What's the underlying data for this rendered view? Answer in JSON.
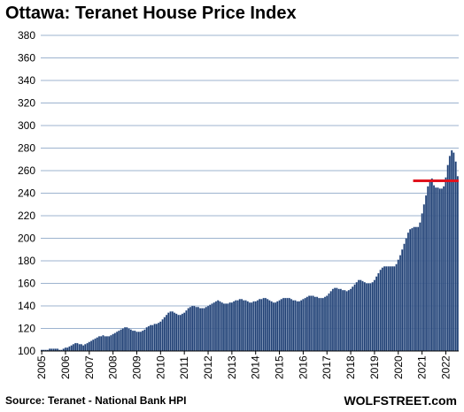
{
  "title": "Ottawa: Teranet House Price Index",
  "source": "Source: Teranet - National Bank HPI",
  "brand": "WOLFSTREET.com",
  "colors": {
    "bar_fill": "#1f3f73",
    "bar_stroke": "#8fa6c8",
    "grid": "#9db3cf",
    "reference_line": "#e0131d",
    "axis": "#000000"
  },
  "chart_data": {
    "type": "bar",
    "title": "Ottawa: Teranet House Price Index",
    "xlabel": "",
    "ylabel": "",
    "ylim": [
      100,
      380
    ],
    "yticks": [
      100,
      120,
      140,
      160,
      180,
      200,
      220,
      240,
      260,
      280,
      300,
      320,
      340,
      360,
      380
    ],
    "xtick_labels": [
      "2005",
      "2006",
      "2007",
      "2008",
      "2009",
      "2010",
      "2011",
      "2012",
      "2013",
      "2014",
      "2015",
      "2016",
      "2017",
      "2018",
      "2019",
      "2020",
      "2021",
      "2022"
    ],
    "grid": true,
    "frequency": "monthly",
    "start": "2005-01",
    "end": "2022-07",
    "series": [
      {
        "values": [
          101,
          101,
          101,
          101,
          102,
          102,
          102,
          102,
          102,
          101,
          101,
          102,
          103,
          103,
          104,
          105,
          106,
          107,
          107,
          106,
          106,
          105,
          106,
          107,
          108,
          109,
          110,
          111,
          112,
          113,
          113,
          114,
          113,
          113,
          113,
          114,
          115,
          116,
          117,
          118,
          119,
          120,
          121,
          121,
          120,
          119,
          118,
          118,
          117,
          117,
          117,
          118,
          119,
          121,
          122,
          123,
          123,
          124,
          124,
          125,
          126,
          128,
          130,
          132,
          134,
          135,
          135,
          134,
          133,
          132,
          132,
          133,
          134,
          136,
          138,
          139,
          140,
          140,
          139,
          139,
          138,
          138,
          138,
          139,
          140,
          141,
          142,
          143,
          144,
          145,
          144,
          143,
          142,
          142,
          142,
          143,
          143,
          144,
          145,
          145,
          146,
          146,
          145,
          145,
          144,
          143,
          143,
          144,
          144,
          145,
          146,
          146,
          147,
          147,
          146,
          145,
          144,
          143,
          143,
          144,
          145,
          146,
          147,
          147,
          147,
          147,
          146,
          145,
          145,
          144,
          144,
          145,
          146,
          147,
          148,
          149,
          149,
          149,
          148,
          148,
          147,
          147,
          147,
          148,
          149,
          151,
          153,
          155,
          156,
          156,
          155,
          155,
          154,
          154,
          153,
          154,
          155,
          157,
          159,
          161,
          163,
          163,
          162,
          161,
          160,
          160,
          160,
          161,
          163,
          166,
          169,
          172,
          174,
          175,
          175,
          175,
          175,
          175,
          175,
          177,
          181,
          185,
          190,
          195,
          200,
          205,
          208,
          209,
          210,
          210,
          210,
          214,
          222,
          230,
          238,
          246,
          252,
          253,
          247,
          245,
          245,
          244,
          244,
          246,
          254,
          265,
          273,
          278,
          276,
          268,
          255
        ]
      }
    ],
    "reference_line": {
      "value": 251,
      "from": "2020-09",
      "to": "2022-07"
    }
  }
}
